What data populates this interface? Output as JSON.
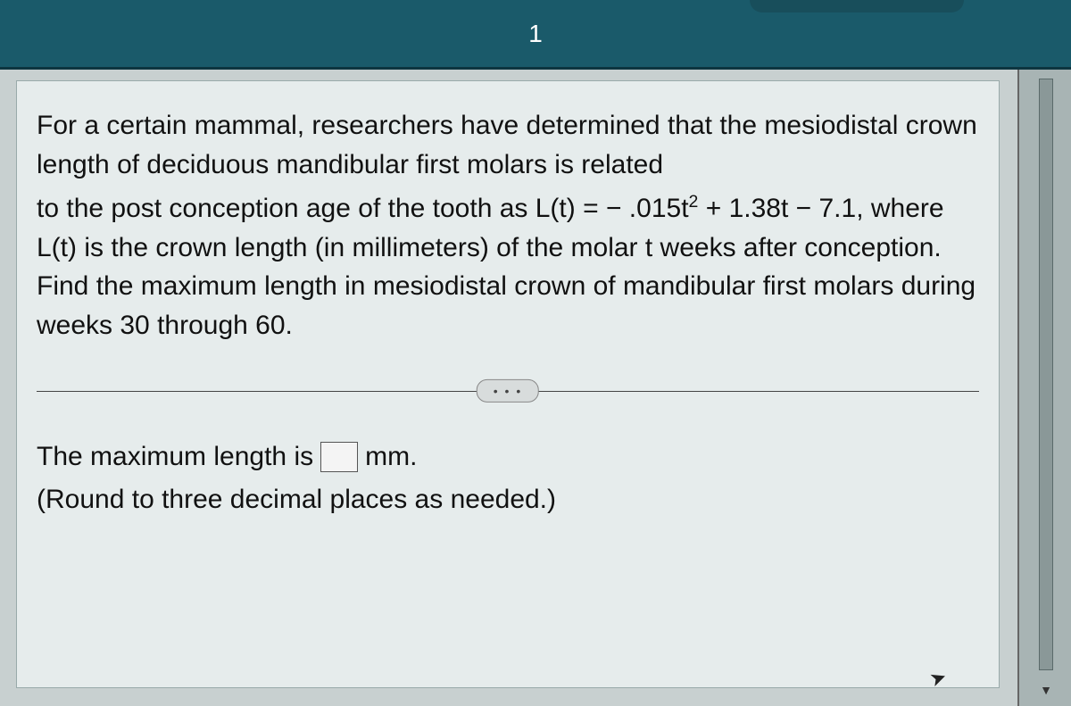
{
  "topbar": {
    "page_number": "1"
  },
  "question": {
    "para1_a": "For a certain mammal, researchers have determined that the mesiodistal crown length of deciduous mandibular first molars is related",
    "para2_prefix": "to the post conception age of the tooth as ",
    "formula_lhs": "L(t) = ",
    "formula_neg": "− .015t",
    "formula_exp": "2",
    "formula_rest": " + 1.38t − 7.1,",
    "para2_suffix": " where L(t) is the crown length (in millimeters) of the molar t weeks after conception. Find the maximum length in mesiodistal crown of mandibular first molars during weeks 30 through 60."
  },
  "divider": {
    "dots": "• • •"
  },
  "answer": {
    "label_before": "The maximum length is",
    "unit": "mm.",
    "input_value": "",
    "hint": "(Round to three decimal places as needed.)"
  },
  "colors": {
    "topbar_bg": "#1a5a6a",
    "page_bg": "#c8d0d0",
    "panel_bg": "#e6ecec"
  }
}
